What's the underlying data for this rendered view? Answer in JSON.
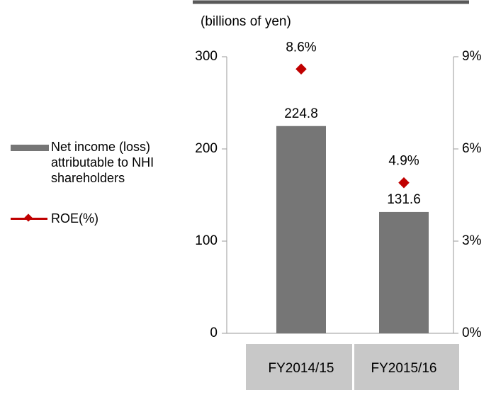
{
  "chart_data": {
    "type": "bar",
    "title": "(billions of yen)",
    "categories": [
      "FY2014/15",
      "FY2015/16"
    ],
    "series": [
      {
        "name": "Net income (loss) attributable to NHI shareholders",
        "type": "bar",
        "color": "#767676",
        "values": [
          224.8,
          131.6
        ]
      },
      {
        "name": "ROE(%)",
        "type": "line",
        "axis": "y2",
        "color": "#c00000",
        "values": [
          8.6,
          4.9
        ],
        "value_labels": [
          "8.6%",
          "4.9%"
        ]
      }
    ],
    "ylim": [
      0,
      300
    ],
    "yticks": [
      0,
      100,
      200,
      300
    ],
    "y2lim": [
      0,
      9
    ],
    "y2ticks": [
      {
        "value": 0,
        "label": "0%"
      },
      {
        "value": 3,
        "label": "3%"
      },
      {
        "value": 6,
        "label": "6%"
      },
      {
        "value": 9,
        "label": "9%"
      }
    ],
    "grid": false,
    "legend": "left"
  }
}
